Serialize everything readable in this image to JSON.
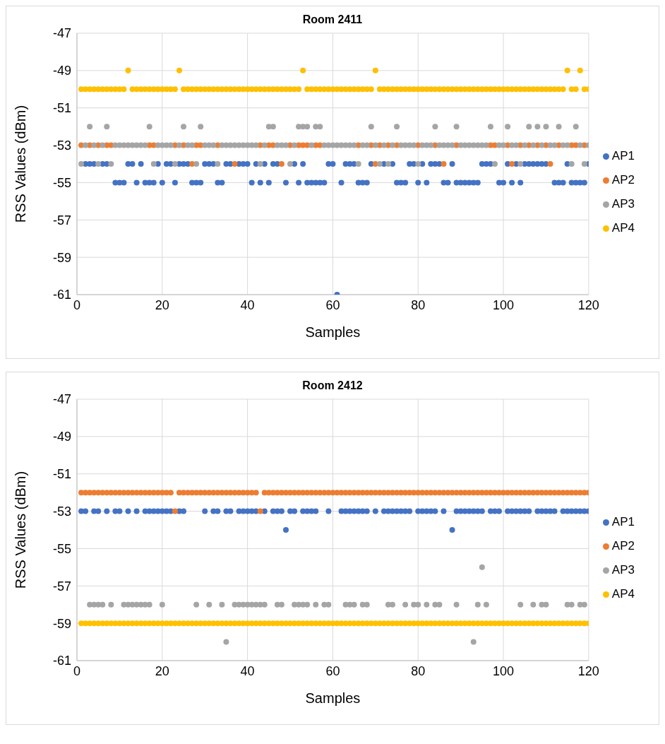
{
  "chart_data": [
    {
      "type": "scatter",
      "title": "Room 2411",
      "xlabel": "Samples",
      "ylabel": "RSS Values (dBm)",
      "legend": "right",
      "grid": true,
      "marker": "circle",
      "xlim": [
        0,
        120
      ],
      "xticks": [
        0,
        20,
        40,
        60,
        80,
        100,
        120
      ],
      "ylim": [
        -61,
        -47
      ],
      "yticks": [
        -61,
        -59,
        -57,
        -55,
        -53,
        -51,
        -49,
        -47
      ],
      "x": [
        1,
        2,
        3,
        4,
        5,
        6,
        7,
        8,
        9,
        10,
        11,
        12,
        13,
        14,
        15,
        16,
        17,
        18,
        19,
        20,
        21,
        22,
        23,
        24,
        25,
        26,
        27,
        28,
        29,
        30,
        31,
        32,
        33,
        34,
        35,
        36,
        37,
        38,
        39,
        40,
        41,
        42,
        43,
        44,
        45,
        46,
        47,
        48,
        49,
        50,
        51,
        52,
        53,
        54,
        55,
        56,
        57,
        58,
        59,
        60,
        61,
        62,
        63,
        64,
        65,
        66,
        67,
        68,
        69,
        70,
        71,
        72,
        73,
        74,
        75,
        76,
        77,
        78,
        79,
        80,
        81,
        82,
        83,
        84,
        85,
        86,
        87,
        88,
        89,
        90,
        91,
        92,
        93,
        94,
        95,
        96,
        97,
        98,
        99,
        100,
        101,
        102,
        103,
        104,
        105,
        106,
        107,
        108,
        109,
        110,
        111,
        112,
        113,
        114,
        115,
        116,
        117,
        118,
        119,
        120
      ],
      "series": [
        {
          "name": "AP1",
          "color": "#4472c4",
          "values": [
            null,
            -54,
            -54,
            -54,
            null,
            -54,
            -54,
            null,
            -55,
            -55,
            -55,
            -54,
            -54,
            -55,
            -54,
            -55,
            -55,
            -55,
            -54,
            -55,
            -54,
            -54,
            -55,
            -54,
            -54,
            -54,
            -55,
            -55,
            -55,
            -54,
            -54,
            -54,
            -55,
            -55,
            -54,
            -54,
            null,
            -54,
            -54,
            -54,
            -55,
            -54,
            -55,
            -54,
            -55,
            -54,
            -54,
            null,
            -55,
            null,
            -54,
            -55,
            -54,
            -55,
            -55,
            -55,
            -55,
            -55,
            -54,
            -54,
            -61,
            -55,
            -54,
            -54,
            -54,
            -55,
            -55,
            -55,
            -54,
            null,
            null,
            -54,
            null,
            -54,
            -55,
            -55,
            -55,
            -54,
            -54,
            -55,
            -54,
            -55,
            -54,
            -54,
            -54,
            -55,
            -55,
            -54,
            -55,
            -55,
            -55,
            -55,
            -55,
            -55,
            -54,
            -54,
            -54,
            null,
            -55,
            -55,
            -54,
            -55,
            -54,
            -55,
            -54,
            -54,
            -54,
            -54,
            -54,
            -54,
            null,
            -55,
            -55,
            -55,
            -54,
            -55,
            -55,
            -55,
            -55,
            -54
          ]
        },
        {
          "name": "AP2",
          "color": "#ed7d31",
          "values": [
            -53,
            null,
            -53,
            null,
            -53,
            null,
            -53,
            -53,
            null,
            null,
            null,
            null,
            null,
            null,
            null,
            null,
            -53,
            -53,
            null,
            null,
            null,
            null,
            -53,
            null,
            -53,
            null,
            -54,
            -53,
            -53,
            null,
            null,
            null,
            -53,
            null,
            null,
            null,
            -54,
            null,
            null,
            null,
            null,
            null,
            -53,
            null,
            -53,
            -53,
            null,
            -54,
            null,
            -53,
            null,
            -53,
            -53,
            -53,
            null,
            -53,
            -53,
            null,
            null,
            null,
            null,
            null,
            null,
            null,
            null,
            -53,
            null,
            null,
            -53,
            -54,
            -53,
            null,
            -53,
            null,
            -53,
            null,
            null,
            null,
            null,
            -53,
            null,
            null,
            null,
            -53,
            null,
            -54,
            null,
            null,
            -53,
            null,
            null,
            null,
            null,
            null,
            null,
            null,
            -53,
            -53,
            null,
            null,
            -53,
            -54,
            null,
            -53,
            null,
            -53,
            null,
            -53,
            null,
            -53,
            -54,
            null,
            -53,
            null,
            null,
            -53,
            -53,
            null,
            -53,
            null
          ]
        },
        {
          "name": "AP3",
          "color": "#a5a5a5",
          "values": [
            -54,
            -53,
            -52,
            -53,
            -54,
            -53,
            -52,
            -54,
            -53,
            -53,
            -53,
            -53,
            -53,
            -53,
            -53,
            -53,
            -52,
            -54,
            -53,
            -53,
            -53,
            -53,
            -54,
            -53,
            -52,
            -53,
            -53,
            -54,
            -52,
            -53,
            -53,
            -53,
            -54,
            -53,
            -53,
            -53,
            -53,
            -53,
            -53,
            -53,
            -53,
            -53,
            -54,
            -53,
            -52,
            -52,
            -53,
            -53,
            -53,
            -54,
            -53,
            -52,
            -52,
            -52,
            -53,
            -52,
            -52,
            -53,
            -53,
            -53,
            -53,
            -53,
            -53,
            -53,
            -53,
            -54,
            -53,
            -53,
            -52,
            -53,
            -54,
            -53,
            -54,
            -53,
            -52,
            -53,
            -53,
            -53,
            -53,
            -54,
            -53,
            -53,
            -53,
            -52,
            -53,
            -53,
            -53,
            -53,
            -52,
            -53,
            -53,
            -53,
            -53,
            -53,
            -53,
            -53,
            -52,
            -54,
            -53,
            -53,
            -52,
            -53,
            -53,
            -54,
            -53,
            -52,
            -53,
            -52,
            -53,
            -52,
            -53,
            -53,
            -52,
            -53,
            -53,
            -54,
            -52,
            -53,
            -54,
            -53
          ]
        },
        {
          "name": "AP4",
          "color": "#ffc000",
          "values": [
            -50,
            -50,
            -50,
            -50,
            -50,
            -50,
            -50,
            -50,
            -50,
            -50,
            -50,
            -49,
            -50,
            -50,
            -50,
            -50,
            -50,
            -50,
            -50,
            -50,
            -50,
            -50,
            -50,
            -49,
            -50,
            -50,
            -50,
            -50,
            -50,
            -50,
            -50,
            -50,
            -50,
            -50,
            -50,
            -50,
            -50,
            -50,
            -50,
            -50,
            -50,
            -50,
            -50,
            -50,
            -50,
            -50,
            -50,
            -50,
            -50,
            -50,
            -50,
            -50,
            -49,
            -50,
            -50,
            -50,
            -50,
            -50,
            -50,
            -50,
            -50,
            -50,
            -50,
            -50,
            -50,
            -50,
            -50,
            -50,
            -50,
            -49,
            -50,
            -50,
            -50,
            -50,
            -50,
            -50,
            -50,
            -50,
            -50,
            -50,
            -50,
            -50,
            -50,
            -50,
            -50,
            -50,
            -50,
            -50,
            -50,
            -50,
            -50,
            -50,
            -50,
            -50,
            -50,
            -50,
            -50,
            -50,
            -50,
            -50,
            -50,
            -50,
            -50,
            -50,
            -50,
            -50,
            -50,
            -50,
            -50,
            -50,
            -50,
            -50,
            -50,
            -50,
            -49,
            -50,
            -50,
            -49,
            -50,
            -50
          ]
        }
      ]
    },
    {
      "type": "scatter",
      "title": "Room 2412",
      "xlabel": "Samples",
      "ylabel": "RSS Values (dBm)",
      "legend": "right",
      "grid": true,
      "marker": "circle",
      "xlim": [
        0,
        120
      ],
      "xticks": [
        0,
        20,
        40,
        60,
        80,
        100,
        120
      ],
      "ylim": [
        -61,
        -47
      ],
      "yticks": [
        -61,
        -59,
        -57,
        -55,
        -53,
        -51,
        -49,
        -47
      ],
      "x": [
        1,
        2,
        3,
        4,
        5,
        6,
        7,
        8,
        9,
        10,
        11,
        12,
        13,
        14,
        15,
        16,
        17,
        18,
        19,
        20,
        21,
        22,
        23,
        24,
        25,
        26,
        27,
        28,
        29,
        30,
        31,
        32,
        33,
        34,
        35,
        36,
        37,
        38,
        39,
        40,
        41,
        42,
        43,
        44,
        45,
        46,
        47,
        48,
        49,
        50,
        51,
        52,
        53,
        54,
        55,
        56,
        57,
        58,
        59,
        60,
        61,
        62,
        63,
        64,
        65,
        66,
        67,
        68,
        69,
        70,
        71,
        72,
        73,
        74,
        75,
        76,
        77,
        78,
        79,
        80,
        81,
        82,
        83,
        84,
        85,
        86,
        87,
        88,
        89,
        90,
        91,
        92,
        93,
        94,
        95,
        96,
        97,
        98,
        99,
        100,
        101,
        102,
        103,
        104,
        105,
        106,
        107,
        108,
        109,
        110,
        111,
        112,
        113,
        114,
        115,
        116,
        117,
        118,
        119,
        120
      ],
      "series": [
        {
          "name": "AP1",
          "color": "#4472c4",
          "values": [
            -53,
            -53,
            null,
            -53,
            -53,
            null,
            -53,
            null,
            -53,
            -53,
            null,
            -53,
            null,
            -53,
            null,
            -53,
            -53,
            -53,
            -53,
            -53,
            -53,
            -53,
            null,
            -53,
            -53,
            null,
            null,
            null,
            null,
            -53,
            null,
            -53,
            -53,
            null,
            -53,
            -53,
            null,
            -53,
            -53,
            -53,
            -53,
            -53,
            null,
            -53,
            null,
            -53,
            -53,
            -53,
            -54,
            -53,
            -53,
            null,
            -53,
            -53,
            -53,
            -53,
            null,
            null,
            -53,
            null,
            null,
            -53,
            -53,
            -53,
            -53,
            -53,
            -53,
            -53,
            null,
            -53,
            null,
            -53,
            -53,
            -53,
            -53,
            -53,
            -53,
            -53,
            null,
            -53,
            -53,
            -53,
            -53,
            -53,
            null,
            -53,
            null,
            -54,
            -53,
            -53,
            -53,
            -53,
            -53,
            -53,
            -53,
            null,
            -53,
            -53,
            -53,
            null,
            -53,
            -53,
            -53,
            -53,
            -53,
            -53,
            null,
            -53,
            -53,
            -53,
            -53,
            -53,
            null,
            -53,
            -53,
            -53,
            -53,
            -53,
            -53,
            -53
          ]
        },
        {
          "name": "AP2",
          "color": "#ed7d31",
          "values": [
            -52,
            -52,
            -52,
            -52,
            -52,
            -52,
            -52,
            -52,
            -52,
            -52,
            -52,
            -52,
            -52,
            -52,
            -52,
            -52,
            -52,
            -52,
            -52,
            -52,
            -52,
            -52,
            -53,
            -52,
            -52,
            -52,
            -52,
            -52,
            -52,
            -52,
            -52,
            -52,
            -52,
            -52,
            -52,
            -52,
            -52,
            -52,
            -52,
            -52,
            -52,
            -52,
            -53,
            -52,
            -52,
            -52,
            -52,
            -52,
            -52,
            -52,
            -52,
            -52,
            -52,
            -52,
            -52,
            -52,
            -52,
            -52,
            -52,
            -52,
            -52,
            -52,
            -52,
            -52,
            -52,
            -52,
            -52,
            -52,
            -52,
            -52,
            -52,
            -52,
            -52,
            -52,
            -52,
            -52,
            -52,
            -52,
            -52,
            -52,
            -52,
            -52,
            -52,
            -52,
            -52,
            -52,
            -52,
            -52,
            -52,
            -52,
            -52,
            -52,
            -52,
            -52,
            -52,
            -52,
            -52,
            -52,
            -52,
            -52,
            -52,
            -52,
            -52,
            -52,
            -52,
            -52,
            -52,
            -52,
            -52,
            -52,
            -52,
            -52,
            -52,
            -52,
            -52,
            -52,
            -52,
            -52,
            -52,
            -52
          ]
        },
        {
          "name": "AP3",
          "color": "#a5a5a5",
          "values": [
            null,
            null,
            -58,
            -58,
            -58,
            -58,
            null,
            -58,
            null,
            null,
            -58,
            -58,
            -58,
            -58,
            -58,
            -58,
            -58,
            null,
            null,
            -58,
            null,
            null,
            null,
            null,
            null,
            null,
            null,
            -58,
            null,
            null,
            -58,
            null,
            null,
            -58,
            -60,
            null,
            -58,
            -58,
            -58,
            -58,
            -58,
            -58,
            -58,
            -58,
            null,
            null,
            -58,
            -58,
            null,
            null,
            -58,
            -58,
            -58,
            -58,
            null,
            -58,
            null,
            -58,
            -58,
            null,
            null,
            null,
            -58,
            -58,
            -58,
            null,
            -58,
            -58,
            null,
            null,
            null,
            null,
            -58,
            -58,
            null,
            null,
            -58,
            null,
            -58,
            -58,
            null,
            -58,
            null,
            -58,
            -58,
            null,
            null,
            null,
            -58,
            null,
            null,
            null,
            -60,
            -58,
            -56,
            -58,
            null,
            null,
            null,
            null,
            null,
            null,
            null,
            -58,
            null,
            null,
            -58,
            null,
            -58,
            -58,
            null,
            null,
            null,
            null,
            -58,
            -58,
            null,
            -58,
            -58,
            null
          ]
        },
        {
          "name": "AP4",
          "color": "#ffc000",
          "values": [
            -59,
            -59,
            -59,
            -59,
            -59,
            -59,
            -59,
            -59,
            -59,
            -59,
            -59,
            -59,
            -59,
            -59,
            -59,
            -59,
            -59,
            -59,
            -59,
            -59,
            -59,
            -59,
            -59,
            -59,
            -59,
            -59,
            -59,
            -59,
            -59,
            -59,
            -59,
            -59,
            -59,
            -59,
            -59,
            -59,
            -59,
            -59,
            -59,
            -59,
            -59,
            -59,
            -59,
            -59,
            -59,
            -59,
            -59,
            -59,
            -59,
            -59,
            -59,
            -59,
            -59,
            -59,
            -59,
            -59,
            -59,
            -59,
            -59,
            -59,
            -59,
            -59,
            -59,
            -59,
            -59,
            -59,
            -59,
            -59,
            -59,
            -59,
            -59,
            -59,
            -59,
            -59,
            -59,
            -59,
            -59,
            -59,
            -59,
            -59,
            -59,
            -59,
            -59,
            -59,
            -59,
            -59,
            -59,
            -59,
            -59,
            -59,
            -59,
            -59,
            -59,
            -59,
            -59,
            -59,
            -59,
            -59,
            -59,
            -59,
            -59,
            -59,
            -59,
            -59,
            -59,
            -59,
            -59,
            -59,
            -59,
            -59,
            -59,
            -59,
            -59,
            -59,
            -59,
            -59,
            -59,
            -59,
            -59,
            -59
          ]
        }
      ]
    }
  ]
}
